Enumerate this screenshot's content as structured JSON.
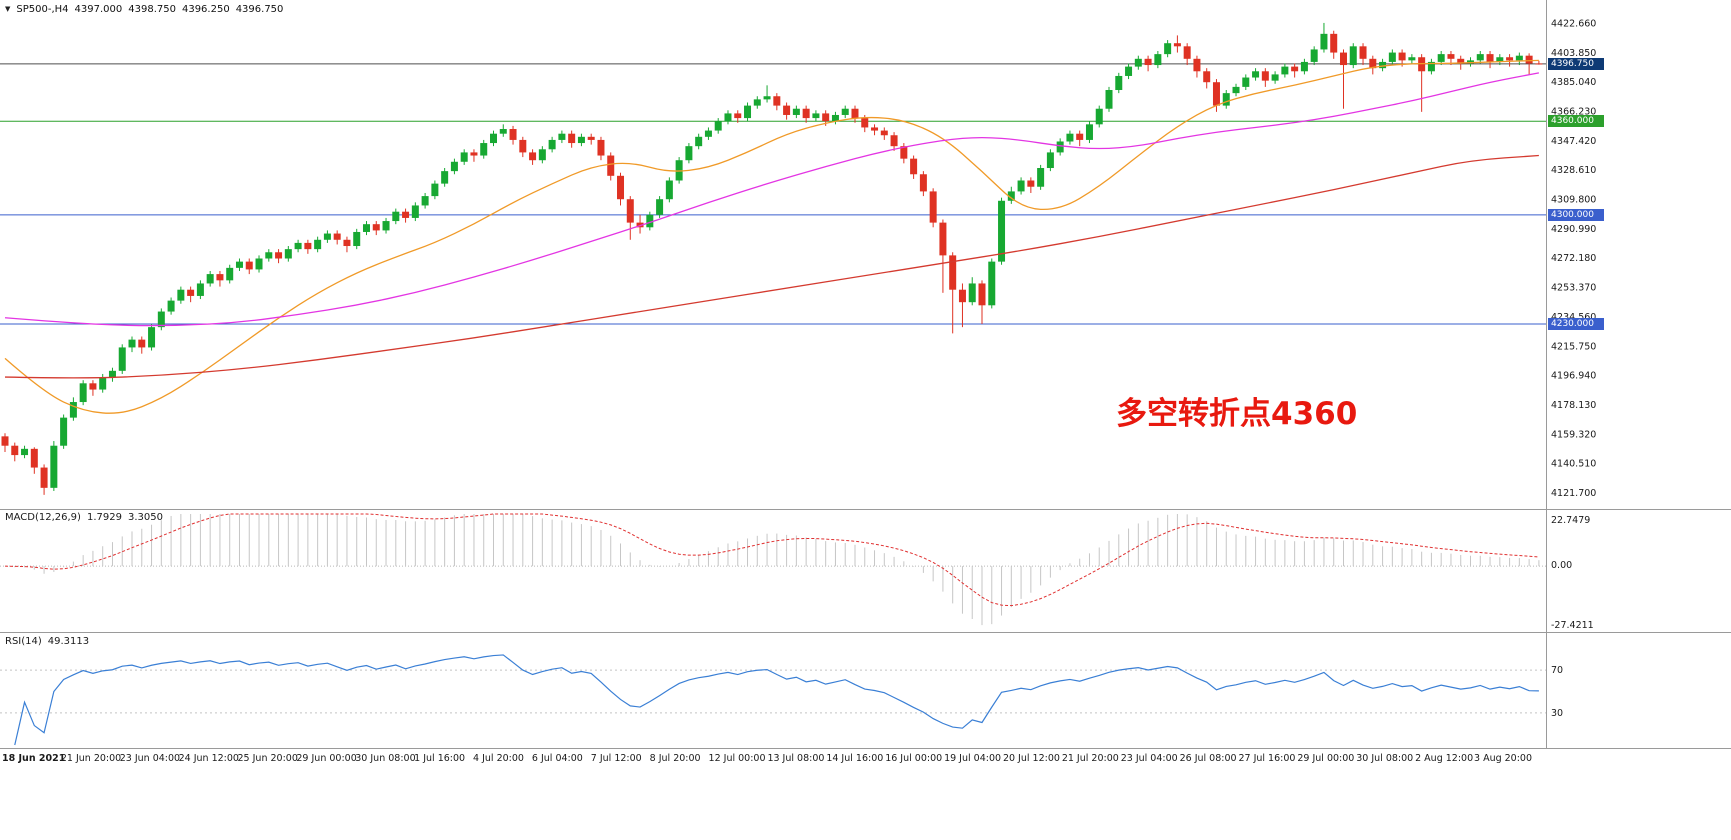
{
  "quote_header": {
    "symbol_timeframe": "SP500-,H4",
    "open": "4397.000",
    "high": "4398.750",
    "low": "4396.250",
    "close": "4396.750"
  },
  "annotation": {
    "text": "多空转折点4360",
    "color": "#e8190f"
  },
  "macd_panel": {
    "title": "MACD(12,26,9)",
    "value_main": "1.7929",
    "value_signal": "3.3050"
  },
  "rsi_panel": {
    "title": "RSI(14)",
    "value": "49.3113"
  },
  "chart_data": {
    "type": "candlestick",
    "symbol": "SP500-",
    "timeframe": "H4",
    "title": "SP500- H4 candlestick chart with MACD and RSI",
    "price_axis_range": [
      4114,
      4430
    ],
    "price_ticks": [
      "4422.660",
      "4403.850",
      "4385.040",
      "4366.230",
      "4347.420",
      "4328.610",
      "4309.800",
      "4290.990",
      "4272.180",
      "4253.370",
      "4234.560",
      "4215.750",
      "4196.940",
      "4178.130",
      "4159.320",
      "4140.510",
      "4121.700"
    ],
    "time_labels": [
      "18 Jun 2021",
      "21 Jun 20:00",
      "23 Jun 04:00",
      "24 Jun 12:00",
      "25 Jun 20:00",
      "29 Jun 00:00",
      "30 Jun 08:00",
      "1 Jul 16:00",
      "4 Jul 20:00",
      "6 Jul 04:00",
      "7 Jul 12:00",
      "8 Jul 20:00",
      "12 Jul 00:00",
      "13 Jul 08:00",
      "14 Jul 16:00",
      "16 Jul 00:00",
      "19 Jul 04:00",
      "20 Jul 12:00",
      "21 Jul 20:00",
      "23 Jul 04:00",
      "26 Jul 08:00",
      "27 Jul 16:00",
      "29 Jul 00:00",
      "30 Jul 08:00",
      "2 Aug 12:00",
      "3 Aug 20:00"
    ],
    "hlines": [
      {
        "price": 4396.75,
        "label": "4396.750",
        "role": "current-price",
        "line": "#4d4d4d",
        "badge": "#0e3a75"
      },
      {
        "price": 4360.0,
        "label": "4360.000",
        "role": "pivot-level",
        "line": "#2ca02c",
        "badge": "#2ca02c"
      },
      {
        "price": 4300.0,
        "label": "4300.000",
        "role": "support-level",
        "line": "#3a5fcd",
        "badge": "#3a5fcd"
      },
      {
        "price": 4230.0,
        "label": "4230.000",
        "role": "support-level",
        "line": "#3a5fcd",
        "badge": "#3a5fcd"
      }
    ],
    "candle_colors": {
      "up": "#17a832",
      "down": "#df3223"
    },
    "ohlc": [
      [
        4158,
        4160,
        4148,
        4152
      ],
      [
        4152,
        4154,
        4142,
        4146
      ],
      [
        4146,
        4152,
        4144,
        4150
      ],
      [
        4150,
        4151,
        4134,
        4138
      ],
      [
        4138,
        4140,
        4120.5,
        4125
      ],
      [
        4125,
        4155,
        4123,
        4152
      ],
      [
        4152,
        4172,
        4150,
        4170
      ],
      [
        4170,
        4183,
        4168,
        4180
      ],
      [
        4180,
        4194,
        4178,
        4192
      ],
      [
        4192,
        4194,
        4184,
        4188
      ],
      [
        4188,
        4198,
        4186,
        4196
      ],
      [
        4196,
        4202,
        4193,
        4200
      ],
      [
        4200,
        4217,
        4198,
        4215
      ],
      [
        4215,
        4222,
        4212,
        4220
      ],
      [
        4220,
        4222,
        4211,
        4215
      ],
      [
        4215,
        4230,
        4213,
        4228
      ],
      [
        4228,
        4240,
        4226,
        4238
      ],
      [
        4238,
        4247,
        4236,
        4245
      ],
      [
        4245,
        4254,
        4243,
        4252
      ],
      [
        4252,
        4254,
        4244,
        4248
      ],
      [
        4248,
        4258,
        4246,
        4256
      ],
      [
        4256,
        4264,
        4254,
        4262
      ],
      [
        4262,
        4264,
        4254,
        4258
      ],
      [
        4258,
        4268,
        4256,
        4266
      ],
      [
        4266,
        4272,
        4264,
        4270
      ],
      [
        4270,
        4272,
        4262,
        4265
      ],
      [
        4265,
        4274,
        4263,
        4272
      ],
      [
        4272,
        4278,
        4270,
        4276
      ],
      [
        4276,
        4278,
        4269,
        4272
      ],
      [
        4272,
        4280,
        4270,
        4278
      ],
      [
        4278,
        4284,
        4276,
        4282
      ],
      [
        4282,
        4284,
        4275,
        4278
      ],
      [
        4278,
        4286,
        4276,
        4284
      ],
      [
        4284,
        4290,
        4282,
        4288
      ],
      [
        4288,
        4290,
        4281,
        4284
      ],
      [
        4284,
        4286,
        4276,
        4280
      ],
      [
        4280,
        4291,
        4278,
        4289
      ],
      [
        4289,
        4296,
        4287,
        4294
      ],
      [
        4294,
        4296,
        4287,
        4290
      ],
      [
        4290,
        4298,
        4288,
        4296
      ],
      [
        4296,
        4304,
        4294,
        4302
      ],
      [
        4302,
        4304,
        4295,
        4298
      ],
      [
        4298,
        4308,
        4296,
        4306
      ],
      [
        4306,
        4314,
        4304,
        4312
      ],
      [
        4312,
        4322,
        4310,
        4320
      ],
      [
        4320,
        4330,
        4318,
        4328
      ],
      [
        4328,
        4336,
        4326,
        4334
      ],
      [
        4334,
        4342,
        4332,
        4340
      ],
      [
        4340,
        4342,
        4334,
        4338
      ],
      [
        4338,
        4348,
        4336,
        4346
      ],
      [
        4346,
        4354,
        4344,
        4352
      ],
      [
        4352,
        4358,
        4350,
        4355
      ],
      [
        4355,
        4357,
        4345,
        4348
      ],
      [
        4348,
        4350,
        4337,
        4340
      ],
      [
        4340,
        4342,
        4332,
        4335
      ],
      [
        4335,
        4344,
        4333,
        4342
      ],
      [
        4342,
        4350,
        4340,
        4348
      ],
      [
        4348,
        4354,
        4346,
        4352
      ],
      [
        4352,
        4354,
        4343,
        4346
      ],
      [
        4346,
        4352,
        4344,
        4350
      ],
      [
        4350,
        4352,
        4345,
        4348
      ],
      [
        4348,
        4350,
        4335,
        4338
      ],
      [
        4338,
        4340,
        4322,
        4325
      ],
      [
        4325,
        4327,
        4306,
        4310
      ],
      [
        4310,
        4312,
        4284,
        4295
      ],
      [
        4295,
        4300,
        4288,
        4292
      ],
      [
        4292,
        4302,
        4290,
        4300
      ],
      [
        4300,
        4312,
        4298,
        4310
      ],
      [
        4310,
        4324,
        4308,
        4322
      ],
      [
        4322,
        4337,
        4320,
        4335
      ],
      [
        4335,
        4346,
        4333,
        4344
      ],
      [
        4344,
        4352,
        4342,
        4350
      ],
      [
        4350,
        4356,
        4348,
        4354
      ],
      [
        4354,
        4362,
        4352,
        4360
      ],
      [
        4360,
        4367,
        4358,
        4365
      ],
      [
        4365,
        4367,
        4359,
        4362
      ],
      [
        4362,
        4372,
        4360,
        4370
      ],
      [
        4370,
        4376,
        4368,
        4374
      ],
      [
        4374,
        4383,
        4372,
        4376
      ],
      [
        4376,
        4378,
        4367,
        4370
      ],
      [
        4370,
        4372,
        4361,
        4364
      ],
      [
        4364,
        4370,
        4362,
        4368
      ],
      [
        4368,
        4370,
        4359,
        4362
      ],
      [
        4362,
        4367,
        4360,
        4365
      ],
      [
        4365,
        4367,
        4357,
        4360
      ],
      [
        4360,
        4366,
        4358,
        4364
      ],
      [
        4364,
        4370,
        4362,
        4368
      ],
      [
        4368,
        4370,
        4359,
        4362
      ],
      [
        4362,
        4364,
        4353,
        4356
      ],
      [
        4356,
        4358,
        4351,
        4354
      ],
      [
        4354,
        4356,
        4348,
        4351
      ],
      [
        4351,
        4353,
        4341,
        4344
      ],
      [
        4344,
        4346,
        4333,
        4336
      ],
      [
        4336,
        4338,
        4323,
        4326
      ],
      [
        4326,
        4328,
        4312,
        4315
      ],
      [
        4315,
        4317,
        4292,
        4295
      ],
      [
        4295,
        4297,
        4250,
        4274
      ],
      [
        4274,
        4276,
        4224,
        4252
      ],
      [
        4252,
        4256,
        4228,
        4244
      ],
      [
        4244,
        4260,
        4242,
        4256
      ],
      [
        4256,
        4258,
        4230,
        4242
      ],
      [
        4242,
        4272,
        4240,
        4270
      ],
      [
        4270,
        4311,
        4268,
        4309
      ],
      [
        4309,
        4318,
        4307,
        4315
      ],
      [
        4315,
        4324,
        4313,
        4322
      ],
      [
        4322,
        4324,
        4314,
        4318
      ],
      [
        4318,
        4332,
        4316,
        4330
      ],
      [
        4330,
        4342,
        4328,
        4340
      ],
      [
        4340,
        4349,
        4338,
        4347
      ],
      [
        4347,
        4354,
        4345,
        4352
      ],
      [
        4352,
        4354,
        4344,
        4348
      ],
      [
        4348,
        4360,
        4346,
        4358
      ],
      [
        4358,
        4370,
        4356,
        4368
      ],
      [
        4368,
        4382,
        4366,
        4380
      ],
      [
        4380,
        4391,
        4378,
        4389
      ],
      [
        4389,
        4397,
        4387,
        4395
      ],
      [
        4395,
        4402,
        4393,
        4400
      ],
      [
        4400,
        4402,
        4392,
        4396
      ],
      [
        4396,
        4405,
        4394,
        4403
      ],
      [
        4403,
        4412,
        4401,
        4410
      ],
      [
        4410,
        4415,
        4404,
        4408
      ],
      [
        4408,
        4410,
        4396,
        4400
      ],
      [
        4400,
        4402,
        4388,
        4392
      ],
      [
        4392,
        4394,
        4381,
        4385
      ],
      [
        4385,
        4387,
        4366,
        4370
      ],
      [
        4370,
        4380,
        4368,
        4378
      ],
      [
        4378,
        4384,
        4376,
        4382
      ],
      [
        4382,
        4390,
        4380,
        4388
      ],
      [
        4388,
        4394,
        4386,
        4392
      ],
      [
        4392,
        4394,
        4382,
        4386
      ],
      [
        4386,
        4392,
        4384,
        4390
      ],
      [
        4390,
        4397,
        4388,
        4395
      ],
      [
        4395,
        4397,
        4388,
        4392
      ],
      [
        4392,
        4400,
        4390,
        4398
      ],
      [
        4398,
        4408,
        4396,
        4406
      ],
      [
        4406,
        4423,
        4404,
        4416
      ],
      [
        4416,
        4418,
        4400,
        4404
      ],
      [
        4404,
        4406,
        4368,
        4396
      ],
      [
        4396,
        4410,
        4394,
        4408
      ],
      [
        4408,
        4410,
        4396,
        4400
      ],
      [
        4400,
        4402,
        4390,
        4394
      ],
      [
        4394,
        4400,
        4392,
        4398
      ],
      [
        4398,
        4406,
        4396,
        4404
      ],
      [
        4404,
        4406,
        4395,
        4399
      ],
      [
        4399,
        4403,
        4397,
        4401
      ],
      [
        4401,
        4403,
        4366,
        4392
      ],
      [
        4392,
        4400,
        4390,
        4398
      ],
      [
        4398,
        4405,
        4396,
        4403
      ],
      [
        4403,
        4405,
        4396,
        4400
      ],
      [
        4400,
        4402,
        4393,
        4397
      ],
      [
        4397,
        4401,
        4395,
        4399
      ],
      [
        4399,
        4405,
        4397,
        4403
      ],
      [
        4403,
        4405,
        4394,
        4398
      ],
      [
        4398,
        4403,
        4396,
        4401
      ],
      [
        4401,
        4403,
        4395,
        4399
      ],
      [
        4399,
        4404,
        4396,
        4402
      ],
      [
        4402,
        4403.5,
        4390,
        4397
      ],
      [
        4397,
        4398.75,
        4396.25,
        4396.75
      ]
    ],
    "moving_averages": [
      {
        "name": "fast",
        "color": "#f09a28",
        "points": [
          [
            0,
            4208
          ],
          [
            4,
            4186
          ],
          [
            8,
            4174
          ],
          [
            12,
            4172
          ],
          [
            16,
            4182
          ],
          [
            20,
            4198
          ],
          [
            24,
            4216
          ],
          [
            28,
            4234
          ],
          [
            32,
            4250
          ],
          [
            36,
            4263
          ],
          [
            40,
            4273
          ],
          [
            44,
            4282
          ],
          [
            48,
            4294
          ],
          [
            52,
            4308
          ],
          [
            56,
            4320
          ],
          [
            60,
            4331
          ],
          [
            64,
            4334
          ],
          [
            68,
            4327
          ],
          [
            72,
            4330
          ],
          [
            76,
            4340
          ],
          [
            80,
            4352
          ],
          [
            84,
            4359
          ],
          [
            88,
            4363
          ],
          [
            92,
            4361
          ],
          [
            96,
            4350
          ],
          [
            100,
            4328
          ],
          [
            104,
            4304
          ],
          [
            108,
            4303
          ],
          [
            112,
            4318
          ],
          [
            116,
            4338
          ],
          [
            120,
            4357
          ],
          [
            124,
            4371
          ],
          [
            128,
            4378
          ],
          [
            132,
            4383
          ],
          [
            136,
            4389
          ],
          [
            140,
            4395
          ],
          [
            144,
            4397
          ],
          [
            148,
            4397
          ],
          [
            152,
            4398
          ],
          [
            157,
            4399
          ]
        ]
      },
      {
        "name": "mid",
        "color": "#e335e3",
        "points": [
          [
            0,
            4234
          ],
          [
            6,
            4231
          ],
          [
            12,
            4229
          ],
          [
            18,
            4229
          ],
          [
            24,
            4231
          ],
          [
            30,
            4236
          ],
          [
            36,
            4242
          ],
          [
            42,
            4250
          ],
          [
            48,
            4260
          ],
          [
            54,
            4271
          ],
          [
            60,
            4283
          ],
          [
            66,
            4295
          ],
          [
            72,
            4308
          ],
          [
            78,
            4320
          ],
          [
            84,
            4331
          ],
          [
            90,
            4341
          ],
          [
            96,
            4348
          ],
          [
            100,
            4350
          ],
          [
            104,
            4348
          ],
          [
            108,
            4344
          ],
          [
            112,
            4342
          ],
          [
            116,
            4344
          ],
          [
            120,
            4349
          ],
          [
            124,
            4353
          ],
          [
            128,
            4356
          ],
          [
            132,
            4359
          ],
          [
            136,
            4363
          ],
          [
            140,
            4368
          ],
          [
            144,
            4373
          ],
          [
            148,
            4379
          ],
          [
            152,
            4385
          ],
          [
            157,
            4391
          ]
        ]
      },
      {
        "name": "slow",
        "color": "#d43a2f",
        "points": [
          [
            0,
            4196
          ],
          [
            8,
            4195
          ],
          [
            16,
            4197
          ],
          [
            24,
            4201
          ],
          [
            32,
            4207
          ],
          [
            40,
            4214
          ],
          [
            48,
            4221
          ],
          [
            56,
            4229
          ],
          [
            64,
            4237
          ],
          [
            72,
            4245
          ],
          [
            80,
            4253
          ],
          [
            88,
            4261
          ],
          [
            96,
            4269
          ],
          [
            104,
            4277
          ],
          [
            112,
            4286
          ],
          [
            120,
            4296
          ],
          [
            128,
            4306
          ],
          [
            136,
            4316
          ],
          [
            144,
            4327
          ],
          [
            150,
            4335
          ],
          [
            157,
            4338
          ]
        ]
      }
    ],
    "indicators": {
      "macd": {
        "fast": 12,
        "slow": 26,
        "signal": 9,
        "hist_color": "#c6c6c6",
        "signal_color": "#e03030",
        "axis": [
          "22.7479",
          "0.00",
          "-27.4211"
        ]
      },
      "rsi": {
        "period": 14,
        "color": "#3a7fd5",
        "levels": [
          "70",
          "30"
        ]
      }
    }
  }
}
